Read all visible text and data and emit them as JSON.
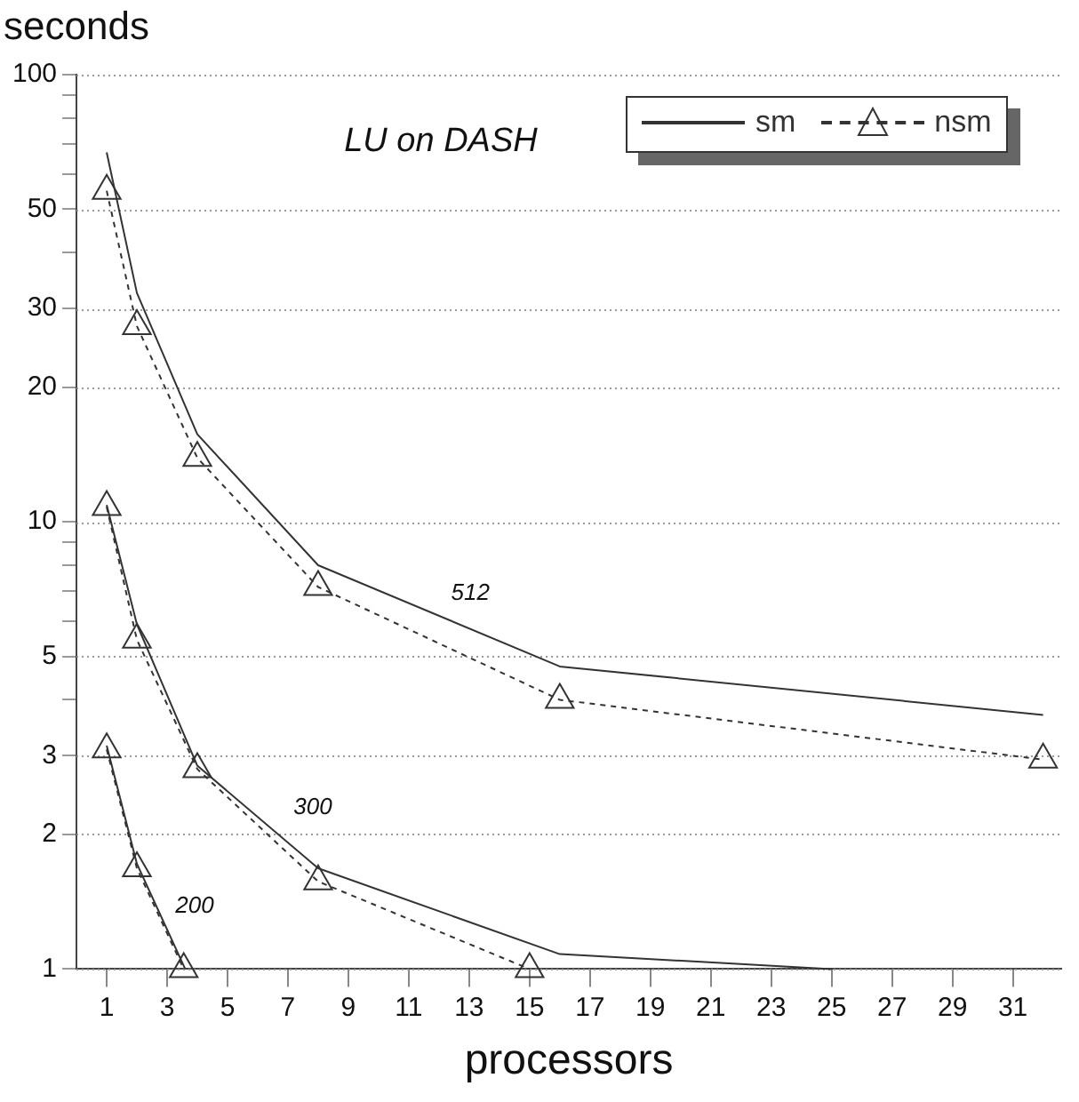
{
  "chart_data": {
    "type": "line",
    "ylabel": "seconds",
    "xlabel": "processors",
    "xlim": [
      0,
      32.6
    ],
    "xticks": [
      1,
      3,
      5,
      7,
      9,
      11,
      13,
      15,
      17,
      19,
      21,
      23,
      25,
      27,
      29,
      31
    ],
    "ylim": [
      1,
      100
    ],
    "yticks": [
      1,
      2,
      3,
      {
        "value": 4,
        "label": null
      },
      5,
      {
        "value": 6,
        "label": null
      },
      {
        "value": 7,
        "label": null
      },
      {
        "value": 8,
        "label": null
      },
      {
        "value": 9,
        "label": null
      },
      10,
      20,
      30,
      {
        "value": 40,
        "label": null
      },
      50,
      {
        "value": 60,
        "label": null
      },
      {
        "value": 70,
        "label": null
      },
      {
        "value": 80,
        "label": null
      },
      {
        "value": 90,
        "label": null
      },
      100
    ],
    "log": "y",
    "grid": "y",
    "legend": "top right",
    "series": [
      {
        "name": "sm",
        "color": "#333333",
        "marker": "none",
        "line_style": "solid",
        "x": [
          1,
          2,
          4,
          8,
          16,
          32
        ],
        "values": [
          67,
          32.5,
          15.7,
          8.0,
          4.75,
          3.7
        ]
      },
      {
        "name": "nsm",
        "color": "#333333",
        "marker": "triangle",
        "line_style": "dashed",
        "x": [
          1,
          2,
          4,
          8,
          16,
          32
        ],
        "values": [
          55,
          27.4,
          13.9,
          7.15,
          4.0,
          2.94
        ]
      },
      {
        "color": "#333333",
        "marker": "none",
        "line_style": "solid",
        "x": [
          1,
          2,
          4,
          8,
          16,
          25
        ],
        "values": [
          10.9,
          5.9,
          2.85,
          1.68,
          1.08,
          1.0
        ]
      },
      {
        "color": "#333333",
        "marker": "triangle",
        "line_style": "dashed",
        "x": [
          1,
          2,
          4,
          8,
          15
        ],
        "values": [
          10.8,
          5.45,
          2.8,
          1.57,
          1.0
        ]
      },
      {
        "color": "#333333",
        "marker": "none",
        "line_style": "solid",
        "x": [
          1,
          2,
          3.6
        ],
        "values": [
          3.16,
          1.72,
          1.0
        ]
      },
      {
        "color": "#333333",
        "marker": "triangle",
        "line_style": "dashed",
        "x": [
          1,
          2,
          3.55
        ],
        "values": [
          3.1,
          1.68,
          1.0
        ]
      }
    ],
    "annotations": [
      "LU on DASH",
      "512",
      "300",
      "200"
    ]
  }
}
